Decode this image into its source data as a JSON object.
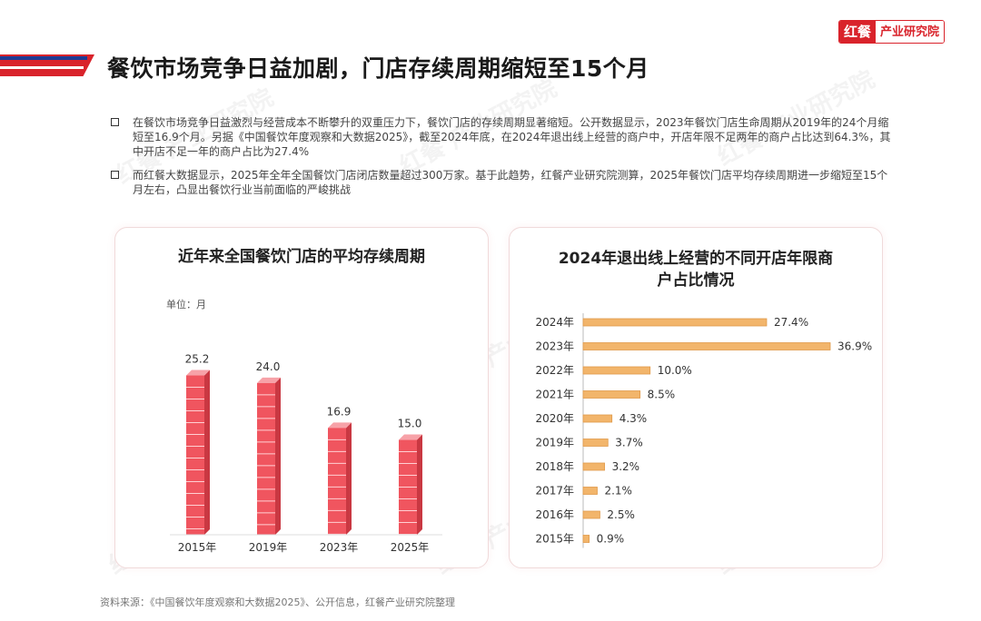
{
  "logo": {
    "mark": "红餐",
    "text": "产业研究院"
  },
  "page_title": "餐饮市场竞争日益加剧，门店存续周期缩短至15个月",
  "bullets": [
    "在餐饮市场竞争日益激烈与经营成本不断攀升的双重压力下，餐饮门店的存续周期显著缩短。公开数据显示，2023年餐饮门店生命周期从2019年的24个月缩短至16.9个月。另据《中国餐饮年度观察和大数据2025》，截至2024年底，在2024年退出线上经营的商户中，开店年限不足两年的商户占比达到64.3%，其中开店不足一年的商户占比为27.4%",
    "而红餐大数据显示，2025年全年全国餐饮门店闭店数量超过300万家。基于此趋势，红餐产业研究院测算，2025年餐饮门店平均存续周期进一步缩短至15个月左右，凸显出餐饮行业当前面临的严峻挑战"
  ],
  "watermark_text": "红餐 产业研究院",
  "source": "资料来源：《中国餐饮年度观察和大数据2025》、公开信息，红餐产业研究院整理",
  "colors": {
    "brand_red": "#d9232b",
    "bar_red": "#f0555f",
    "bar_orange": "#f2b56b"
  },
  "chart_data": [
    {
      "type": "bar",
      "title": "近年来全国餐饮门店的平均存续周期",
      "unit_label": "单位：月",
      "categories": [
        "2015年",
        "2019年",
        "2023年",
        "2025年"
      ],
      "values": [
        25.2,
        24.0,
        16.9,
        15.0
      ],
      "data_labels": [
        "25.2",
        "24.0",
        "16.9",
        "15.0"
      ],
      "ylim": [
        0,
        27
      ]
    },
    {
      "type": "bar",
      "orientation": "horizontal",
      "title": "2024年退出线上经营的不同开店年限商户占比情况",
      "categories": [
        "2024年",
        "2023年",
        "2022年",
        "2021年",
        "2020年",
        "2019年",
        "2018年",
        "2017年",
        "2016年",
        "2015年"
      ],
      "values": [
        27.4,
        36.9,
        10.0,
        8.5,
        4.3,
        3.7,
        3.2,
        2.1,
        2.5,
        0.9
      ],
      "data_labels": [
        "27.4%",
        "36.9%",
        "10.0%",
        "8.5%",
        "4.3%",
        "3.7%",
        "3.2%",
        "2.1%",
        "2.5%",
        "0.9%"
      ],
      "xlim": [
        0,
        36.9
      ]
    }
  ]
}
